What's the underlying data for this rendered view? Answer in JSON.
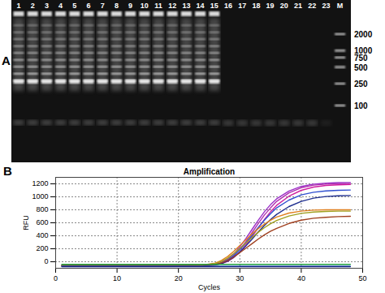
{
  "figure_a": {
    "label": "A",
    "lanes": [
      "1",
      "2",
      "3",
      "4",
      "5",
      "6",
      "7",
      "8",
      "9",
      "10",
      "11",
      "12",
      "13",
      "14",
      "15",
      "16",
      "17",
      "18",
      "19",
      "20",
      "21",
      "22",
      "23"
    ],
    "amplified": [
      true,
      true,
      true,
      true,
      true,
      true,
      true,
      true,
      true,
      true,
      true,
      true,
      true,
      true,
      true,
      false,
      false,
      false,
      false,
      false,
      false,
      false,
      false
    ],
    "marker_lane": "M",
    "marker_sizes": [
      2000,
      1000,
      750,
      500,
      250,
      100
    ]
  },
  "chart_data": {
    "type": "line",
    "panel_label": "B",
    "title": "Amplification",
    "x_label": "Cycles",
    "y_label": "RFU",
    "x": [
      1,
      5,
      10,
      15,
      20,
      22,
      24,
      26,
      27,
      28,
      29,
      30,
      31,
      32,
      33,
      34,
      35,
      36,
      38,
      40,
      42,
      44,
      46,
      48
    ],
    "series": [
      {
        "color": "#9b30c8",
        "values": [
          -60,
          -60,
          -60,
          -60,
          -60,
          -60,
          -58,
          -40,
          -10,
          40,
          120,
          230,
          360,
          500,
          640,
          770,
          880,
          970,
          1090,
          1160,
          1195,
          1210,
          1218,
          1220
        ]
      },
      {
        "color": "#b030b0",
        "values": [
          -60,
          -60,
          -60,
          -60,
          -60,
          -60,
          -59,
          -45,
          -20,
          20,
          90,
          190,
          310,
          450,
          590,
          720,
          830,
          930,
          1060,
          1140,
          1180,
          1195,
          1200,
          1205
        ]
      },
      {
        "color": "#d020a0",
        "values": [
          -62,
          -62,
          -62,
          -62,
          -62,
          -62,
          -60,
          -50,
          -30,
          5,
          65,
          150,
          260,
          390,
          520,
          650,
          770,
          870,
          1010,
          1100,
          1150,
          1175,
          1185,
          1190
        ]
      },
      {
        "color": "#3050d0",
        "values": [
          -60,
          -60,
          -60,
          -60,
          -60,
          -60,
          -58,
          -45,
          -20,
          25,
          95,
          185,
          290,
          410,
          530,
          640,
          740,
          830,
          950,
          1030,
          1070,
          1090,
          1100,
          1105
        ]
      },
      {
        "color": "#203090",
        "values": [
          -60,
          -60,
          -60,
          -60,
          -60,
          -60,
          -59,
          -48,
          -28,
          10,
          70,
          150,
          245,
          350,
          460,
          560,
          650,
          730,
          850,
          930,
          980,
          1005,
          1015,
          1020
        ]
      },
      {
        "color": "#e08020",
        "values": [
          -60,
          -60,
          -60,
          -60,
          -60,
          -58,
          -50,
          -20,
          20,
          80,
          160,
          250,
          340,
          430,
          510,
          580,
          640,
          690,
          750,
          780,
          795,
          800,
          800,
          800
        ]
      },
      {
        "color": "#a0a020",
        "values": [
          -60,
          -60,
          -60,
          -60,
          -60,
          -59,
          -52,
          -28,
          5,
          55,
          125,
          205,
          290,
          375,
          455,
          525,
          585,
          635,
          705,
          745,
          765,
          775,
          780,
          780
        ]
      },
      {
        "color": "#a04020",
        "values": [
          -60,
          -60,
          -60,
          -60,
          -60,
          -60,
          -57,
          -42,
          -18,
          20,
          75,
          140,
          210,
          280,
          350,
          415,
          470,
          515,
          590,
          640,
          670,
          685,
          695,
          700
        ]
      },
      {
        "color": "#20a040",
        "values": [
          -40,
          -40,
          -40,
          -40,
          -40,
          -40,
          -40,
          -40,
          -40,
          -40,
          -40,
          -40,
          -40,
          -40,
          -40,
          -40,
          -40,
          -40,
          -40,
          -40,
          -40,
          -40,
          -40,
          -40
        ]
      },
      {
        "color": "#2060e0",
        "values": [
          -70,
          -70,
          -70,
          -70,
          -70,
          -70,
          -70,
          -70,
          -70,
          -70,
          -70,
          -70,
          -70,
          -70,
          -70,
          -70,
          -70,
          -70,
          -70,
          -70,
          -70,
          -70,
          -70,
          -70
        ]
      },
      {
        "color": "#102080",
        "values": [
          -75,
          -75,
          -75,
          -75,
          -75,
          -75,
          -75,
          -75,
          -75,
          -75,
          -75,
          -75,
          -75,
          -75,
          -75,
          -75,
          -75,
          -75,
          -75,
          -75,
          -75,
          -75,
          -75,
          -75
        ]
      }
    ],
    "xlim": [
      0,
      50
    ],
    "xticks": [
      0,
      10,
      20,
      30,
      40,
      50
    ],
    "ylim": [
      -100,
      1300
    ],
    "yticks": [
      0,
      200,
      400,
      600,
      800,
      1000,
      1200
    ],
    "grid": true
  }
}
